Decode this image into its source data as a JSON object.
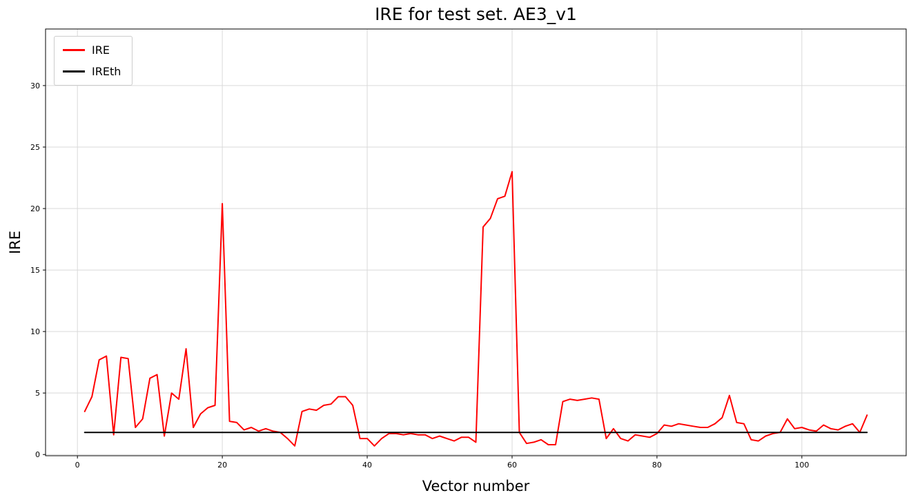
{
  "chart_data": {
    "type": "line",
    "title": "IRE for test set. AE3_v1",
    "xlabel": "Vector number",
    "ylabel": "IRE",
    "xlim": [
      -4.4,
      114.4
    ],
    "ylim": [
      -0.1,
      34.6
    ],
    "xticks": [
      0,
      20,
      40,
      60,
      80,
      100
    ],
    "yticks": [
      0,
      5,
      10,
      15,
      20,
      25,
      30
    ],
    "grid": true,
    "grid_color": "#d9d9d9",
    "legend_position": "upper left",
    "series": [
      {
        "name": "IRE",
        "color": "#ff0000",
        "x_start": 1,
        "x_step": 1,
        "values": [
          3.5,
          4.7,
          7.7,
          8.0,
          1.6,
          7.9,
          7.8,
          2.2,
          2.9,
          6.2,
          6.5,
          1.5,
          5.0,
          4.5,
          8.6,
          2.2,
          3.3,
          3.8,
          4.0,
          20.4,
          2.7,
          2.6,
          2.0,
          2.2,
          1.9,
          2.1,
          1.9,
          1.8,
          1.3,
          0.7,
          3.5,
          3.7,
          3.6,
          4.0,
          4.1,
          4.7,
          4.7,
          4.0,
          1.3,
          1.3,
          0.7,
          1.3,
          1.7,
          1.7,
          1.6,
          1.7,
          1.6,
          1.6,
          1.3,
          1.5,
          1.3,
          1.1,
          1.4,
          1.4,
          1.0,
          18.5,
          19.2,
          20.8,
          21.0,
          23.0,
          1.8,
          0.9,
          1.0,
          1.2,
          0.8,
          0.8,
          4.3,
          4.5,
          4.4,
          4.5,
          4.6,
          4.5,
          1.3,
          2.1,
          1.3,
          1.1,
          1.6,
          1.5,
          1.4,
          1.7,
          2.4,
          2.3,
          2.5,
          2.4,
          2.3,
          2.2,
          2.2,
          2.5,
          3.0,
          4.8,
          2.6,
          2.5,
          1.2,
          1.1,
          1.5,
          1.7,
          1.8,
          2.9,
          2.1,
          2.2,
          2.0,
          1.9,
          2.4,
          2.1,
          2.0,
          2.3,
          2.5,
          1.8,
          3.2
        ]
      },
      {
        "name": "IREth",
        "color": "#000000",
        "x": [
          1,
          109
        ],
        "values": [
          1.8,
          1.8
        ]
      }
    ]
  }
}
